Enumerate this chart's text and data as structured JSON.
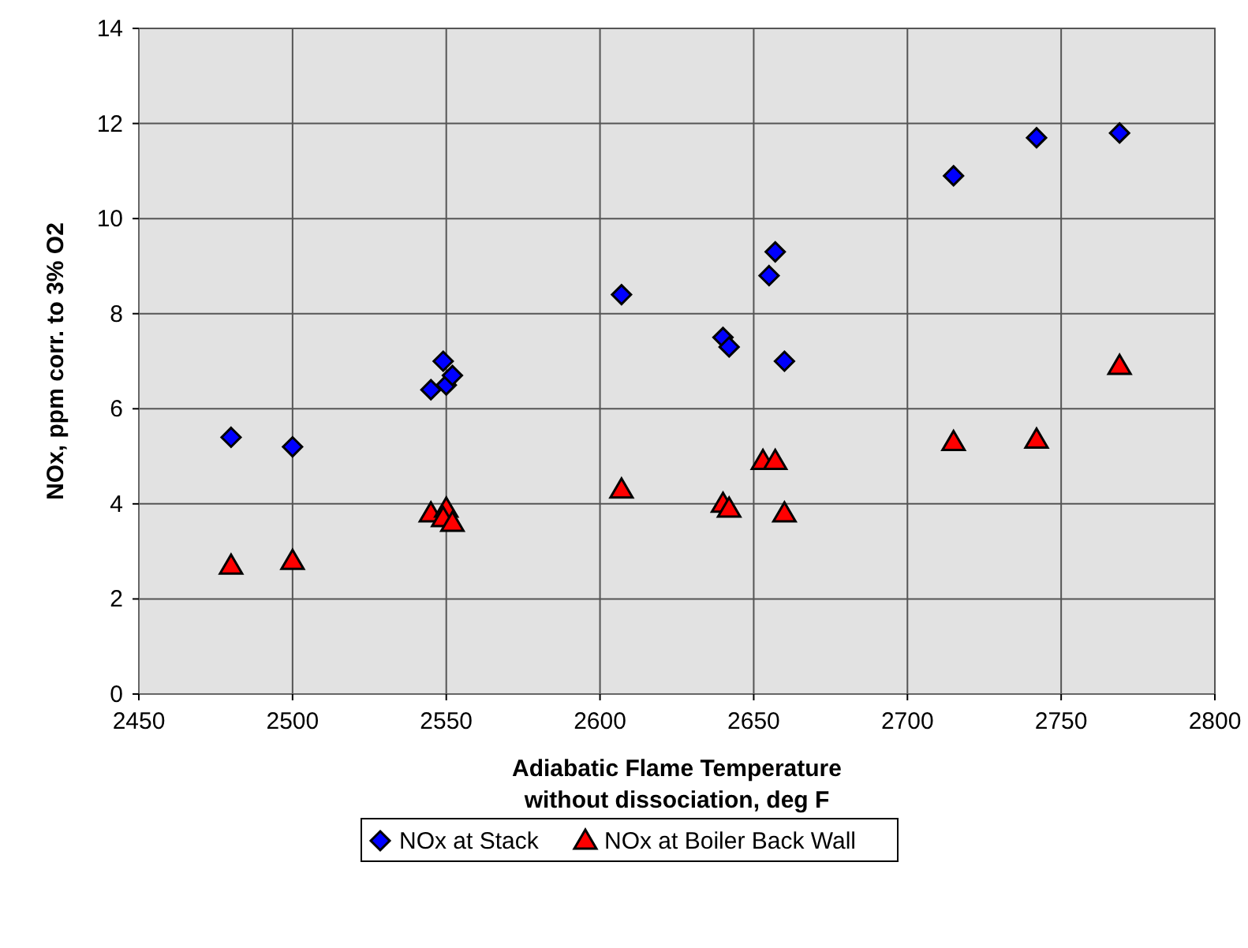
{
  "chart_data": {
    "type": "scatter",
    "xlabel": "Adiabatic Flame Temperature\nwithout dissociation,  deg F",
    "ylabel": "NOx, ppm corr. to 3% O2",
    "xlim": [
      2450,
      2800
    ],
    "xticks": [
      2450,
      2500,
      2550,
      2600,
      2650,
      2700,
      2750,
      2800
    ],
    "ylim": [
      0,
      14
    ],
    "yticks": [
      0,
      2,
      4,
      6,
      8,
      10,
      12,
      14
    ],
    "grid": true,
    "legend": "bottom",
    "series": [
      {
        "name": "NOx at Stack",
        "color": "#0000ff",
        "marker": "diamond",
        "x": [
          2480,
          2500,
          2545,
          2549,
          2550,
          2552,
          2607,
          2640,
          2642,
          2655,
          2657,
          2660,
          2715,
          2742,
          2769
        ],
        "values": [
          5.4,
          5.2,
          6.4,
          7.0,
          6.5,
          6.7,
          8.4,
          7.5,
          7.3,
          8.8,
          9.3,
          7.0,
          10.9,
          11.7,
          11.8
        ]
      },
      {
        "name": "NOx at Boiler Back Wall",
        "color": "#ff0000",
        "marker": "triangle",
        "x": [
          2480,
          2500,
          2545,
          2550,
          2549,
          2552,
          2607,
          2640,
          2642,
          2653,
          2657,
          2660,
          2715,
          2742,
          2769
        ],
        "values": [
          2.7,
          2.8,
          3.8,
          3.9,
          3.7,
          3.6,
          4.3,
          4.0,
          3.9,
          4.9,
          4.9,
          3.8,
          5.3,
          5.35,
          6.9
        ]
      }
    ]
  }
}
